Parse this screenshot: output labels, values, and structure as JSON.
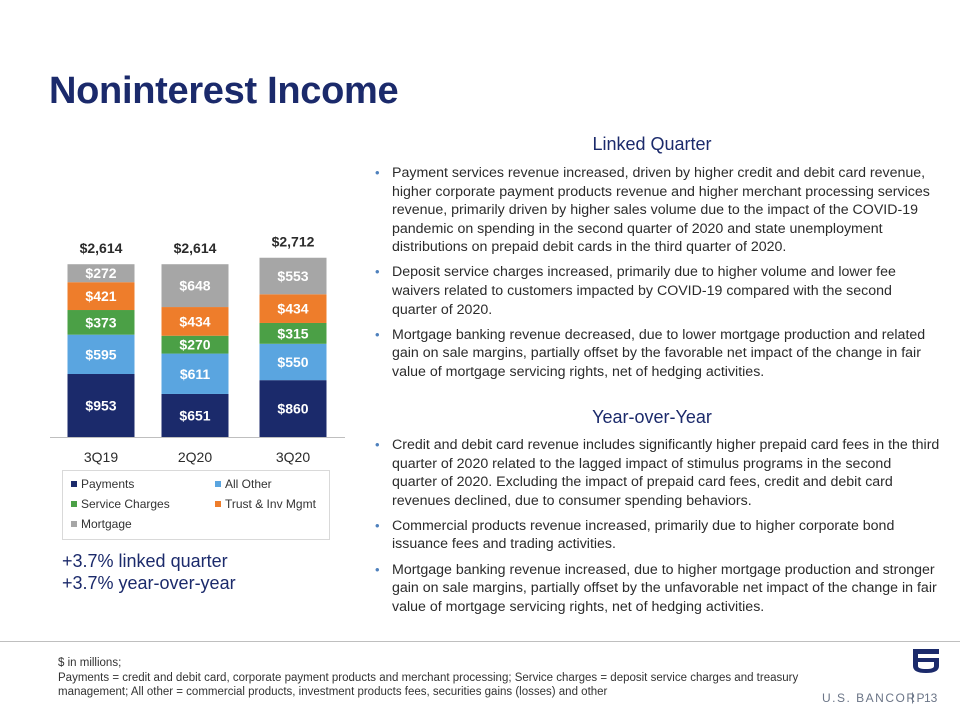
{
  "title": "Noninterest Income",
  "chart_data": {
    "type": "bar",
    "stacked": true,
    "categories": [
      "3Q19",
      "2Q20",
      "3Q20"
    ],
    "totals": [
      "$2,614",
      "$2,614",
      "$2,712"
    ],
    "series": [
      {
        "name": "Payments",
        "color": "#1b2a6b",
        "values": [
          953,
          651,
          860
        ],
        "labels": [
          "$953",
          "$651",
          "$860"
        ]
      },
      {
        "name": "All Other",
        "color": "#5aa5e0",
        "values": [
          595,
          611,
          550
        ],
        "labels": [
          "$595",
          "$611",
          "$550"
        ]
      },
      {
        "name": "Service Charges",
        "color": "#4ba046",
        "values": [
          373,
          270,
          315
        ],
        "labels": [
          "$373",
          "$270",
          "$315"
        ]
      },
      {
        "name": "Trust & Inv Mgmt",
        "color": "#ee7d2b",
        "values": [
          421,
          434,
          434
        ],
        "labels": [
          "$421",
          "$434",
          "$434"
        ]
      },
      {
        "name": "Mortgage",
        "color": "#a6a6a6",
        "values": [
          272,
          648,
          553
        ],
        "labels": [
          "$272",
          "$648",
          "$553"
        ]
      }
    ],
    "legend_position": "bottom",
    "grid": false
  },
  "growth": {
    "linked_quarter": "+3.7% linked quarter",
    "year_over_year": "+3.7% year-over-year"
  },
  "linked_quarter": {
    "heading": "Linked Quarter",
    "bullets": [
      "Payment services revenue increased, driven by higher credit and debit card revenue, higher corporate payment products revenue and higher merchant processing services revenue, primarily driven by higher sales volume due to the impact of the COVID-19 pandemic on spending in the second quarter of 2020 and state unemployment distributions on prepaid debit cards in the third quarter of 2020.",
      "Deposit service charges increased, primarily due to higher volume and lower fee waivers related to customers impacted by COVID-19 compared with the second quarter of 2020.",
      "Mortgage banking revenue decreased, due to lower mortgage production and related gain on sale margins, partially offset by the favorable net impact of the change in fair value of mortgage servicing rights, net of hedging activities."
    ]
  },
  "year_over_year": {
    "heading": "Year-over-Year",
    "bullets": [
      "Credit and debit card revenue includes significantly higher prepaid card fees in the third quarter of 2020 related to the lagged impact of stimulus programs in the second quarter of 2020. Excluding the impact of prepaid card fees, credit and debit card revenues declined, due to consumer spending behaviors.",
      "Commercial products revenue increased, primarily due to higher corporate bond issuance fees and trading activities.",
      "Mortgage banking revenue increased, due to higher mortgage production and stronger gain on sale margins, partially offset by the unfavorable net impact of the change in fair value of mortgage servicing rights, net of hedging activities."
    ]
  },
  "footnote": {
    "line1": "$ in millions;",
    "line2": "Payments = credit and debit card, corporate payment products and merchant processing; Service charges = deposit service charges and treasury management; All other = commercial products, investment products fees, securities gains (losses) and other"
  },
  "brand": {
    "name": "U.S. BANCORP",
    "separator": "|",
    "page_number": "13"
  }
}
